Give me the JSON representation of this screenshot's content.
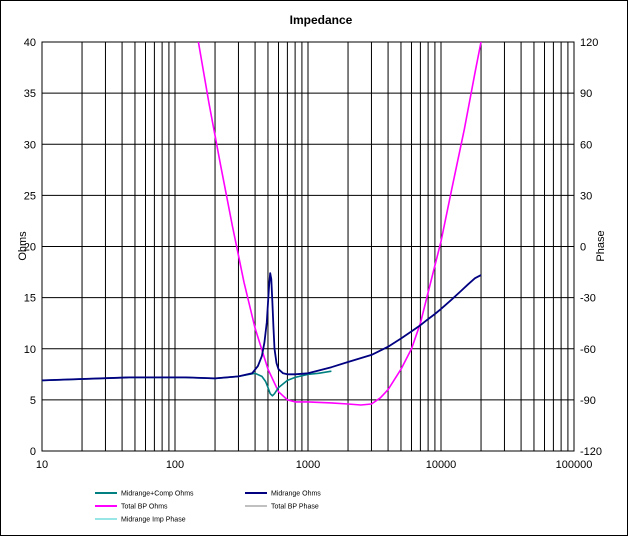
{
  "chart_data": {
    "type": "line",
    "title": "Impedance",
    "xlabel": "",
    "ylabel": "Ohms",
    "y2label": "Phase",
    "x_scale": "log",
    "xlim": [
      10,
      100000
    ],
    "ylim": [
      0,
      40
    ],
    "y2lim": [
      -120,
      120
    ],
    "grid": true,
    "legend_position": "bottom",
    "x_ticks": [
      "10",
      "100",
      "1000",
      "10000",
      "100000"
    ],
    "y_ticks": [
      "0",
      "5",
      "10",
      "15",
      "20",
      "25",
      "30",
      "35",
      "40"
    ],
    "y2_ticks": [
      "-120",
      "-90",
      "-60",
      "-30",
      "0",
      "30",
      "60",
      "90",
      "120"
    ],
    "colors": {
      "midrange_comp_ohms": "#008080",
      "midrange_ohms": "#000080",
      "total_bp_ohms": "#ff00ff",
      "total_bp_phase": "#808080",
      "midrange_imp_phase": "#33cccc"
    },
    "series": [
      {
        "name": "Midrange+Comp Ohms",
        "axis": "left",
        "x": [
          10,
          45,
          120,
          200,
          300,
          400,
          450,
          480,
          500,
          520,
          540,
          560,
          600,
          700,
          800,
          1000,
          1200,
          1500
        ],
        "y": [
          6.9,
          7.2,
          7.2,
          7.1,
          7.3,
          7.6,
          7.3,
          6.8,
          6.2,
          5.6,
          5.4,
          5.6,
          6.2,
          6.9,
          7.2,
          7.5,
          7.6,
          7.8
        ]
      },
      {
        "name": "Midrange Ohms",
        "axis": "left",
        "x": [
          10,
          45,
          120,
          200,
          300,
          380,
          420,
          450,
          470,
          490,
          500,
          510,
          520,
          530,
          540,
          550,
          560,
          580,
          600,
          650,
          700,
          800,
          1000,
          1500,
          2000,
          3000,
          4000,
          5000,
          6000,
          7000,
          8000,
          9000,
          10000,
          12000,
          14000,
          16000,
          18000,
          20000
        ],
        "y": [
          6.9,
          7.2,
          7.2,
          7.1,
          7.3,
          7.6,
          8.3,
          9.3,
          10.6,
          12.6,
          14.5,
          16.2,
          17.4,
          16.8,
          14.5,
          12.0,
          10.0,
          8.6,
          8.0,
          7.6,
          7.5,
          7.5,
          7.6,
          8.2,
          8.7,
          9.4,
          10.2,
          11.0,
          11.7,
          12.3,
          12.9,
          13.4,
          13.9,
          14.8,
          15.6,
          16.3,
          16.9,
          17.2
        ]
      },
      {
        "name": "Total BP Ohms",
        "axis": "left",
        "x": [
          150,
          180,
          220,
          270,
          330,
          400,
          500,
          600,
          700,
          800,
          1000,
          1500,
          2000,
          2500,
          3000,
          3500,
          4000,
          5000,
          6000,
          7000,
          8000,
          10000,
          12000,
          15000,
          18000,
          20000
        ],
        "y": [
          40,
          34,
          28,
          22,
          16.5,
          12,
          8,
          5.8,
          5.0,
          4.8,
          4.8,
          4.7,
          4.6,
          4.5,
          4.6,
          5.2,
          6.0,
          8.0,
          10.0,
          12.5,
          15.5,
          20.5,
          25.5,
          31.5,
          37.0,
          40.0
        ]
      },
      {
        "name": "Total BP Phase",
        "axis": "right",
        "x": [],
        "y": []
      },
      {
        "name": "Midrange Imp Phase",
        "axis": "right",
        "x": [],
        "y": []
      }
    ]
  }
}
